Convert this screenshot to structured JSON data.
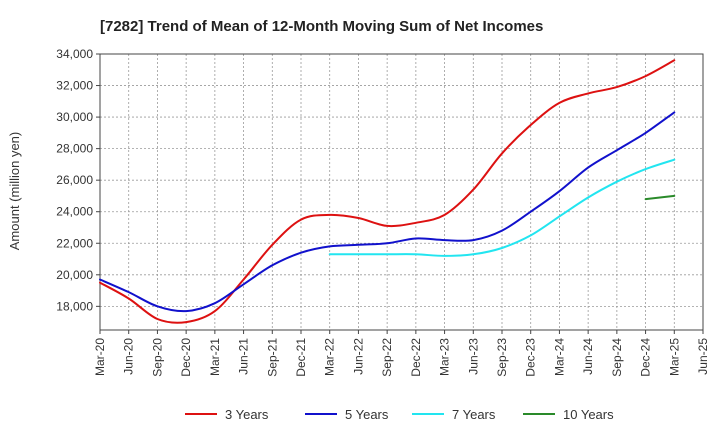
{
  "chart_data": {
    "type": "line",
    "title": "[7282]  Trend of Mean of 12-Month Moving Sum of Net Incomes",
    "ylabel": "Amount (million yen)",
    "xlabel": "",
    "ylim": [
      16500,
      34000
    ],
    "yticks": [
      18000,
      20000,
      22000,
      24000,
      26000,
      28000,
      30000,
      32000,
      34000
    ],
    "ytick_labels": [
      "18,000",
      "20,000",
      "22,000",
      "24,000",
      "26,000",
      "28,000",
      "30,000",
      "32,000",
      "34,000"
    ],
    "xticks": [
      "Mar-20",
      "Jun-20",
      "Sep-20",
      "Dec-20",
      "Mar-21",
      "Jun-21",
      "Sep-21",
      "Dec-21",
      "Mar-22",
      "Jun-22",
      "Sep-22",
      "Dec-22",
      "Mar-23",
      "Jun-23",
      "Sep-23",
      "Dec-23",
      "Mar-24",
      "Jun-24",
      "Sep-24",
      "Dec-24",
      "Mar-25",
      "Jun-25"
    ],
    "grid": true,
    "legend_position": "bottom",
    "series": [
      {
        "name": "3 Years",
        "color": "#dd1111",
        "points": [
          [
            "Mar-20",
            19500
          ],
          [
            "Jun-20",
            18500
          ],
          [
            "Sep-20",
            17200
          ],
          [
            "Dec-20",
            17000
          ],
          [
            "Mar-21",
            17700
          ],
          [
            "Jun-21",
            19700
          ],
          [
            "Sep-21",
            21900
          ],
          [
            "Dec-21",
            23500
          ],
          [
            "Mar-22",
            23800
          ],
          [
            "Jun-22",
            23600
          ],
          [
            "Sep-22",
            23100
          ],
          [
            "Dec-22",
            23300
          ],
          [
            "Mar-23",
            23800
          ],
          [
            "Jun-23",
            25400
          ],
          [
            "Sep-23",
            27700
          ],
          [
            "Dec-23",
            29500
          ],
          [
            "Mar-24",
            30900
          ],
          [
            "Jun-24",
            31500
          ],
          [
            "Sep-24",
            31900
          ],
          [
            "Dec-24",
            32600
          ],
          [
            "Mar-25",
            33600
          ]
        ]
      },
      {
        "name": "5 Years",
        "color": "#1111cc",
        "points": [
          [
            "Mar-20",
            19700
          ],
          [
            "Jun-20",
            18900
          ],
          [
            "Sep-20",
            18000
          ],
          [
            "Dec-20",
            17700
          ],
          [
            "Mar-21",
            18200
          ],
          [
            "Jun-21",
            19400
          ],
          [
            "Sep-21",
            20600
          ],
          [
            "Dec-21",
            21400
          ],
          [
            "Mar-22",
            21800
          ],
          [
            "Jun-22",
            21900
          ],
          [
            "Sep-22",
            22000
          ],
          [
            "Dec-22",
            22300
          ],
          [
            "Mar-23",
            22200
          ],
          [
            "Jun-23",
            22200
          ],
          [
            "Sep-23",
            22800
          ],
          [
            "Dec-23",
            24000
          ],
          [
            "Mar-24",
            25300
          ],
          [
            "Jun-24",
            26800
          ],
          [
            "Sep-24",
            27900
          ],
          [
            "Dec-24",
            29000
          ],
          [
            "Mar-25",
            30300
          ]
        ]
      },
      {
        "name": "7 Years",
        "color": "#22e5f0",
        "points": [
          [
            "Mar-22",
            21300
          ],
          [
            "Jun-22",
            21300
          ],
          [
            "Sep-22",
            21300
          ],
          [
            "Dec-22",
            21300
          ],
          [
            "Mar-23",
            21200
          ],
          [
            "Jun-23",
            21300
          ],
          [
            "Sep-23",
            21700
          ],
          [
            "Dec-23",
            22500
          ],
          [
            "Mar-24",
            23700
          ],
          [
            "Jun-24",
            24900
          ],
          [
            "Sep-24",
            25900
          ],
          [
            "Dec-24",
            26700
          ],
          [
            "Mar-25",
            27300
          ]
        ]
      },
      {
        "name": "10 Years",
        "color": "#2a8a2a",
        "points": [
          [
            "Dec-24",
            24800
          ],
          [
            "Mar-25",
            25000
          ]
        ]
      }
    ]
  }
}
